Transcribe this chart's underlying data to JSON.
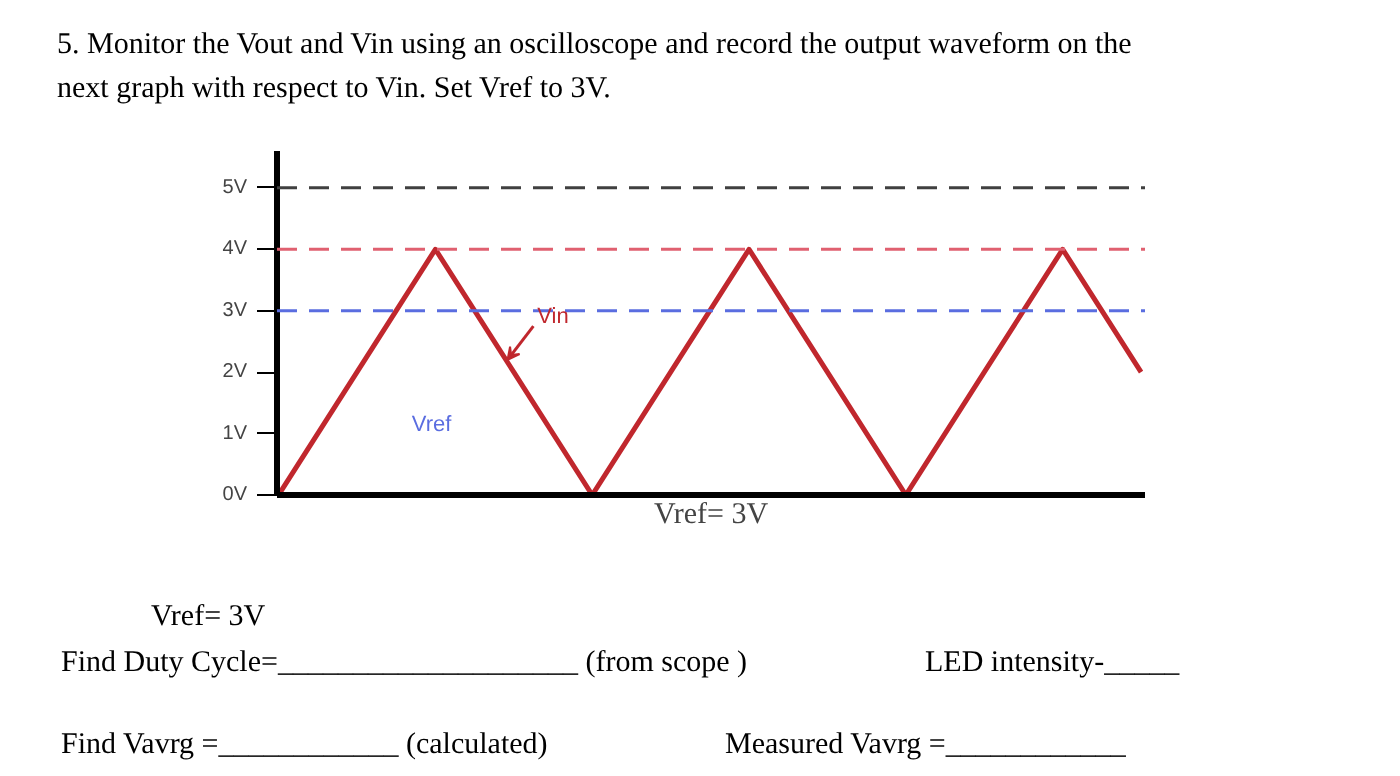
{
  "chart_data": {
    "type": "line",
    "title": "5. Monitor the Vout and Vin using an oscilloscope and record the output waveform on the\nnext graph with respect to Vin. Set Vref to 3V.",
    "xlabel": "Vref= 3V",
    "categories": [
      null,
      null,
      null,
      null,
      null,
      null,
      null,
      null,
      null,
      null,
      null,
      null
    ],
    "series": [
      {
        "color": "#c0272d",
        "values": [
          0,
          2,
          4,
          2,
          0,
          2,
          4,
          2,
          0,
          2,
          4,
          2
        ]
      }
    ],
    "ylim": [
      0,
      5.6
    ],
    "yticks": [
      {
        "value": 0,
        "label": "0V"
      },
      {
        "value": 1,
        "label": "1V"
      },
      {
        "value": 2,
        "label": "2V"
      },
      {
        "value": 3,
        "label": "3V"
      },
      {
        "value": 4,
        "label": "4V"
      },
      {
        "value": 5,
        "label": "5V"
      }
    ],
    "ref_lines": [
      {
        "axis": "y",
        "value": 5,
        "color": "#404040",
        "line_style": "dashed"
      },
      {
        "axis": "y",
        "value": 4,
        "color": "#e06070",
        "line_style": "dashed"
      },
      {
        "axis": "y",
        "value": 3,
        "color": "#5a6de0",
        "line_style": "dashed"
      }
    ],
    "annotations": [
      "Vin",
      "Vref",
      "Vref= 3V",
      "Find Duty Cycle=____________________ (from scope )",
      "LED intensity-_____",
      "Find Vavrg =____________ (calculated)",
      "Measured Vavrg =____________"
    ],
    "tick_labels": "y",
    "grid": false,
    "line_style": "solid",
    "marker": "none"
  }
}
